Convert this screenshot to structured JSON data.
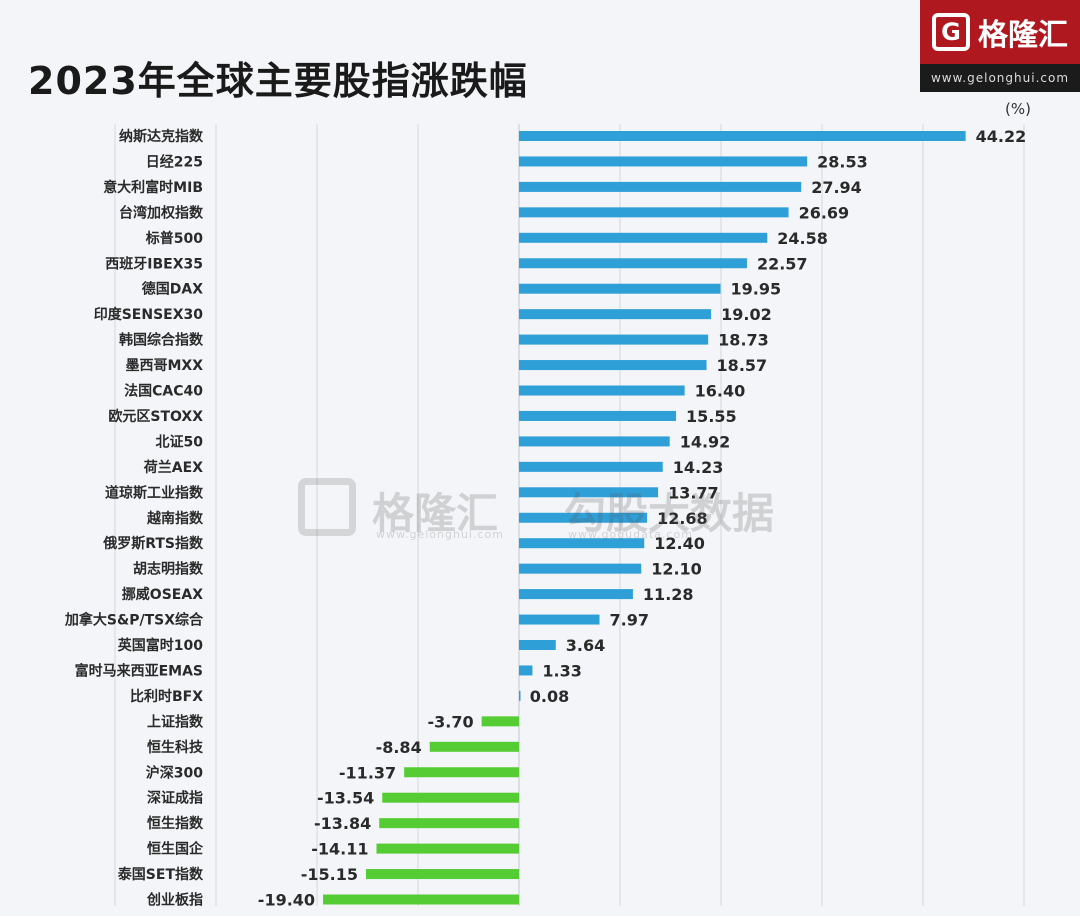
{
  "title": "2023年全球主要股指涨跌幅",
  "brand": {
    "name": "格隆汇",
    "url": "www.gelonghui.com"
  },
  "watermark": {
    "brand1": "格隆汇",
    "url1": "www.gelonghui.com",
    "brand2": "勾股大数据",
    "url2": "www.gogudata.com"
  },
  "colors": {
    "positive": "#2f9fd8",
    "negative": "#55cc33",
    "brand_red": "#b01820",
    "corner_red": "#c0162a",
    "corner_dark": "#1e2340",
    "grid": "#d3d8de"
  },
  "chart_data": {
    "type": "bar",
    "orientation": "horizontal",
    "title": "2023年全球主要股指涨跌幅",
    "unit": "(%)",
    "xlim": [
      -40,
      50
    ],
    "grid": true,
    "categories": [
      "纳斯达克指数",
      "日经225",
      "意大利富时MIB",
      "台湾加权指数",
      "标普500",
      "西班牙IBEX35",
      "德国DAX",
      "印度SENSEX30",
      "韩国综合指数",
      "墨西哥MXX",
      "法国CAC40",
      "欧元区STOXX",
      "北证50",
      "荷兰AEX",
      "道琼斯工业指数",
      "越南指数",
      "俄罗斯RTS指数",
      "胡志明指数",
      "挪威OSEAX",
      "加拿大S&P/TSX综合",
      "英国富时100",
      "富时马来西亚EMAS",
      "比利时BFX",
      "上证指数",
      "恒生科技",
      "沪深300",
      "深证成指",
      "恒生指数",
      "恒生国企",
      "泰国SET指数",
      "创业板指"
    ],
    "values": [
      44.22,
      28.53,
      27.94,
      26.69,
      24.58,
      22.57,
      19.95,
      19.02,
      18.73,
      18.57,
      16.4,
      15.55,
      14.92,
      14.23,
      13.77,
      12.68,
      12.4,
      12.1,
      11.28,
      7.97,
      3.64,
      1.33,
      0.08,
      -3.7,
      -8.84,
      -11.37,
      -13.54,
      -13.84,
      -14.11,
      -15.15,
      -19.4
    ],
    "value_labels": [
      "44.22",
      "28.53",
      "27.94",
      "26.69",
      "24.58",
      "22.57",
      "19.95",
      "19.02",
      "18.73",
      "18.57",
      "16.40",
      "15.55",
      "14.92",
      "14.23",
      "13.77",
      "12.68",
      "12.40",
      "12.10",
      "11.28",
      "7.97",
      "3.64",
      "1.33",
      "0.08",
      "-3.70",
      "-8.84",
      "-11.37",
      "-13.54",
      "-13.84",
      "-14.11",
      "-15.15",
      "-19.40"
    ]
  }
}
